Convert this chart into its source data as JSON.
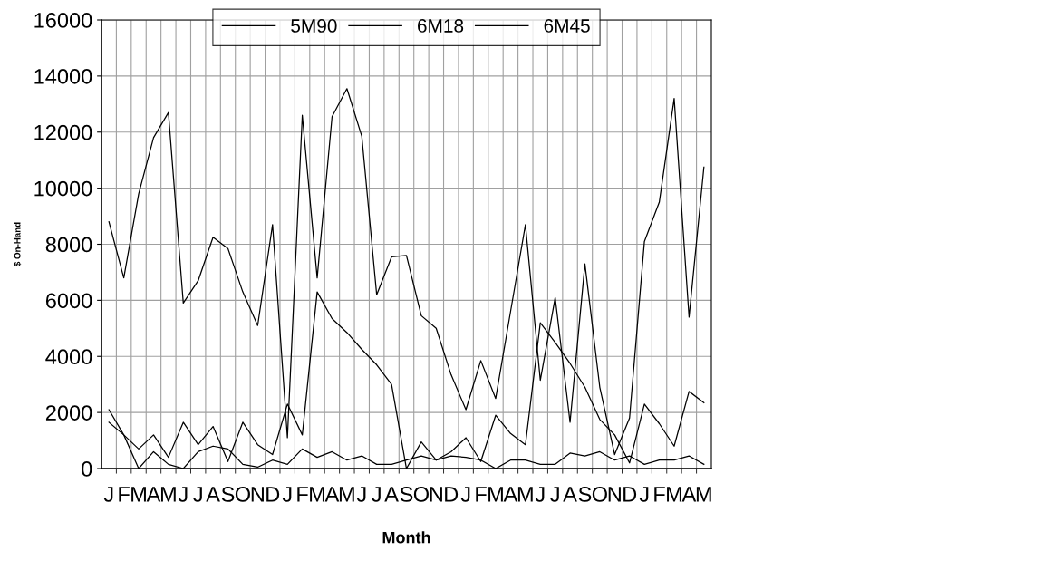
{
  "chart_data": {
    "type": "line",
    "xlabel": "Month",
    "ylabel": "$ On-Hand",
    "categories": [
      "J",
      "F",
      "M",
      "A",
      "M",
      "J",
      "J",
      "A",
      "S",
      "O",
      "N",
      "D",
      "J",
      "F",
      "M",
      "A",
      "M",
      "J",
      "J",
      "A",
      "S",
      "O",
      "N",
      "D",
      "J",
      "F",
      "M",
      "A",
      "M",
      "J",
      "J",
      "A",
      "S",
      "O",
      "N",
      "D",
      "J",
      "F",
      "M",
      "A",
      "M"
    ],
    "series": [
      {
        "name": "5M90",
        "color": "#000000",
        "values": [
          8800,
          6800,
          9800,
          11800,
          12700,
          5900,
          6700,
          8250,
          7850,
          6300,
          5100,
          8700,
          1100,
          12600,
          6800,
          12550,
          13550,
          11850,
          6200,
          7550,
          7600,
          5450,
          5000,
          3350,
          2100,
          3850,
          2500,
          5600,
          8700,
          3150,
          6100,
          1650,
          7300,
          2900,
          500,
          1800,
          8100,
          9500,
          13200,
          5400,
          10750
        ]
      },
      {
        "name": "6M18",
        "color": "#000000",
        "values": [
          2100,
          1200,
          700,
          1200,
          400,
          1650,
          850,
          1500,
          250,
          1650,
          850,
          500,
          2300,
          1200,
          6300,
          5350,
          4850,
          4250,
          3700,
          3000,
          0,
          950,
          300,
          600,
          1100,
          250,
          1900,
          1250,
          850,
          5200,
          4500,
          3750,
          2900,
          1750,
          1200,
          200,
          2300,
          1600,
          800,
          2750,
          2350
        ]
      },
      {
        "name": "6M45",
        "color": "#000000",
        "values": [
          1650,
          1200,
          0,
          600,
          150,
          0,
          600,
          800,
          700,
          150,
          50,
          300,
          150,
          700,
          400,
          600,
          300,
          450,
          150,
          150,
          300,
          450,
          300,
          450,
          400,
          300,
          0,
          300,
          300,
          150,
          150,
          550,
          450,
          600,
          300,
          450,
          150,
          300,
          300,
          450,
          150
        ]
      }
    ],
    "ylim": [
      0,
      16000
    ],
    "yticks": [
      0,
      2000,
      4000,
      6000,
      8000,
      10000,
      12000,
      14000,
      16000
    ],
    "grid": true,
    "legend": "top",
    "marker": "none",
    "line_style": "solid"
  }
}
